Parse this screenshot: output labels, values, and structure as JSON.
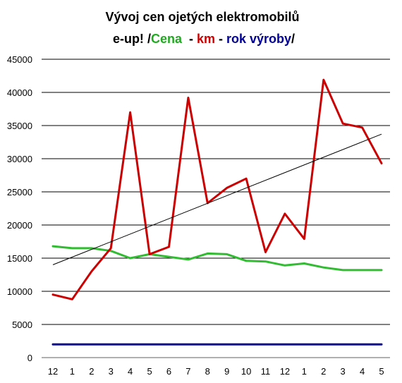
{
  "chart_data": {
    "type": "line",
    "title": "Vývoj cen ojetých elektromobilů",
    "subtitle_parts": [
      {
        "text": "e-up! ",
        "color": "#000000"
      },
      {
        "text": "/",
        "color": "#000000"
      },
      {
        "text": "Cena",
        "color": "#22AA22"
      },
      {
        "text": "  - ",
        "color": "#000000"
      },
      {
        "text": "km",
        "color": "#CC0000"
      },
      {
        "text": " - ",
        "color": "#000000"
      },
      {
        "text": "rok výroby",
        "color": "#000099"
      },
      {
        "text": "/",
        "color": "#000000"
      }
    ],
    "categories": [
      "12",
      "1",
      "2",
      "3",
      "4",
      "5",
      "6",
      "7",
      "8",
      "9",
      "10",
      "11",
      "12",
      "1",
      "2",
      "3",
      "4",
      "5"
    ],
    "ylim": [
      0,
      45000
    ],
    "yticks": [
      "0",
      "5000",
      "10000",
      "15000",
      "20000",
      "25000",
      "30000",
      "35000",
      "40000",
      "45000"
    ],
    "grid": true,
    "legend": "none",
    "series": [
      {
        "key": "km",
        "color": "#CC0000",
        "values": [
          9500,
          8800,
          13000,
          16500,
          37000,
          15600,
          16700,
          39200,
          23300,
          25600,
          27000,
          15900,
          21700,
          17900,
          41900,
          35300,
          34700,
          29300
        ]
      },
      {
        "key": "cena",
        "color": "#33BB33",
        "values": [
          16800,
          16500,
          16500,
          16100,
          15000,
          15600,
          15200,
          14800,
          15700,
          15600,
          14600,
          14500,
          13900,
          14200,
          13600,
          13200,
          13200,
          13200
        ]
      },
      {
        "key": "rok_vyroby",
        "color": "#000099",
        "values": [
          2000,
          2000,
          2000,
          2000,
          2000,
          2000,
          2000,
          2000,
          2000,
          2000,
          2000,
          2000,
          2000,
          2000,
          2000,
          2000,
          2000,
          2000
        ]
      }
    ],
    "trendline": {
      "of_series": "km",
      "color": "#000000",
      "start_value": 14000,
      "end_value": 33700
    }
  }
}
